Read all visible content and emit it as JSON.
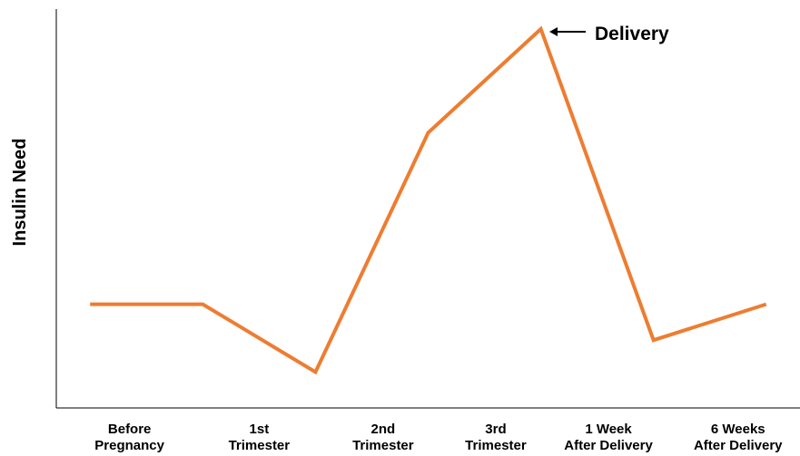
{
  "chart_data": {
    "type": "line",
    "y_label": "Insulin Need",
    "annotation": "Delivery",
    "x": [
      0,
      1,
      2,
      3,
      4,
      5,
      6
    ],
    "series": [
      {
        "color": "#ed7d31",
        "values": [
          26,
          26,
          9,
          69,
          95,
          17,
          26
        ]
      }
    ],
    "xlim": [
      -0.3,
      6.3
    ],
    "ylim": [
      0,
      100
    ],
    "xticks": [
      {
        "value": 0.35,
        "label": "Before\nPregnancy"
      },
      {
        "value": 1.5,
        "label": "1st\nTrimester"
      },
      {
        "value": 2.6,
        "label": "2nd\nTrimester"
      },
      {
        "value": 3.6,
        "label": "3rd\nTrimester"
      },
      {
        "value": 4.6,
        "label": "1 Week\nAfter Delivery"
      },
      {
        "value": 5.75,
        "label": "6 Weeks\nAfter Delivery"
      }
    ]
  }
}
